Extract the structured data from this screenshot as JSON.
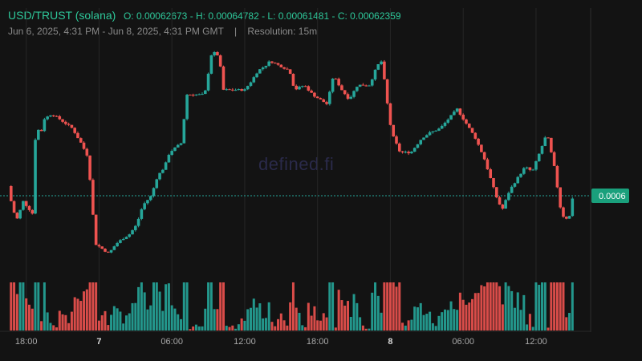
{
  "header": {
    "symbol": "USD/TRUST (solana)",
    "ohlc": "O: 0.00062673 - H: 0.00064782 - L: 0.00061481 - C: 0.00062359",
    "range": "Jun 6, 2025, 4:31 PM - Jun 8, 2025, 4:31 PM GMT",
    "separator": "|",
    "resolution": "Resolution: 15m"
  },
  "watermark": "defined.fi",
  "colors": {
    "up": "#26a69a",
    "down": "#ef5350",
    "background": "#131313",
    "grid": "#262626",
    "price_line": "#26a69a"
  },
  "chart_data": {
    "type": "candlestick",
    "title": "USD/TRUST (solana)",
    "resolution": "15m",
    "current_price_label": "0.0006",
    "current_price": 0.000623,
    "x_ticks": [
      {
        "label": "18:00",
        "hour": 1.5,
        "bold": false
      },
      {
        "label": "7",
        "hour": 7.5,
        "bold": true
      },
      {
        "label": "06:00",
        "hour": 13.5,
        "bold": false
      },
      {
        "label": "12:00",
        "hour": 19.5,
        "bold": false
      },
      {
        "label": "18:00",
        "hour": 25.5,
        "bold": false
      },
      {
        "label": "8",
        "hour": 31.5,
        "bold": true
      },
      {
        "label": "06:00",
        "hour": 37.5,
        "bold": false
      },
      {
        "label": "12:00",
        "hour": 43.5,
        "bold": false
      }
    ],
    "y_range": [
      0.000605,
      0.000655
    ],
    "x_range_hours": [
      0,
      48
    ],
    "close_path": [
      [
        0.0,
        0.000625
      ],
      [
        0.4,
        0.00062
      ],
      [
        0.8,
        0.000618
      ],
      [
        1.2,
        0.000622
      ],
      [
        2.1,
        0.000619
      ],
      [
        2.3,
        0.00064
      ],
      [
        2.6,
        0.000635
      ],
      [
        3.0,
        0.000639
      ],
      [
        3.6,
        0.00064
      ],
      [
        4.2,
        0.000639
      ],
      [
        5.3,
        0.000637
      ],
      [
        6.0,
        0.000634
      ],
      [
        6.6,
        0.000631
      ],
      [
        7.2,
        0.000613
      ],
      [
        8.3,
        0.000611
      ],
      [
        8.9,
        0.000613
      ],
      [
        9.4,
        0.000614
      ],
      [
        10.0,
        0.000615
      ],
      [
        10.6,
        0.000617
      ],
      [
        11.1,
        0.000621
      ],
      [
        11.8,
        0.000623
      ],
      [
        12.3,
        0.000627
      ],
      [
        12.9,
        0.000629
      ],
      [
        13.3,
        0.000632
      ],
      [
        14.3,
        0.000634
      ],
      [
        14.7,
        0.000644
      ],
      [
        16.2,
        0.000644
      ],
      [
        16.8,
        0.000653
      ],
      [
        17.4,
        0.000652
      ],
      [
        17.7,
        0.000645
      ],
      [
        19.5,
        0.000645
      ],
      [
        20.1,
        0.000647
      ],
      [
        20.6,
        0.000649
      ],
      [
        21.2,
        0.00065
      ],
      [
        21.6,
        0.000651
      ],
      [
        23.2,
        0.000649
      ],
      [
        23.6,
        0.000645
      ],
      [
        24.4,
        0.000646
      ],
      [
        25.1,
        0.000644
      ],
      [
        25.7,
        0.000643
      ],
      [
        26.3,
        0.000642
      ],
      [
        26.8,
        0.000648
      ],
      [
        27.5,
        0.000645
      ],
      [
        28.1,
        0.000643
      ],
      [
        28.8,
        0.000646
      ],
      [
        29.8,
        0.000646
      ],
      [
        30.4,
        0.00065
      ],
      [
        30.8,
        0.000651
      ],
      [
        31.2,
        0.000643
      ],
      [
        31.6,
        0.000636
      ],
      [
        32.3,
        0.000632
      ],
      [
        33.2,
        0.000632
      ],
      [
        34.1,
        0.000635
      ],
      [
        34.7,
        0.000636
      ],
      [
        35.6,
        0.000637
      ],
      [
        36.3,
        0.000639
      ],
      [
        37.0,
        0.000641
      ],
      [
        38.0,
        0.000637
      ],
      [
        38.5,
        0.000635
      ],
      [
        39.2,
        0.000631
      ],
      [
        40.2,
        0.000623
      ],
      [
        40.7,
        0.00062
      ],
      [
        41.3,
        0.000624
      ],
      [
        41.8,
        0.000626
      ],
      [
        42.6,
        0.000629
      ],
      [
        43.2,
        0.000628
      ],
      [
        43.8,
        0.000632
      ],
      [
        44.4,
        0.000636
      ],
      [
        45.0,
        0.000629
      ],
      [
        45.6,
        0.000619
      ],
      [
        46.2,
        0.000618
      ],
      [
        46.6,
        0.000624
      ]
    ]
  }
}
